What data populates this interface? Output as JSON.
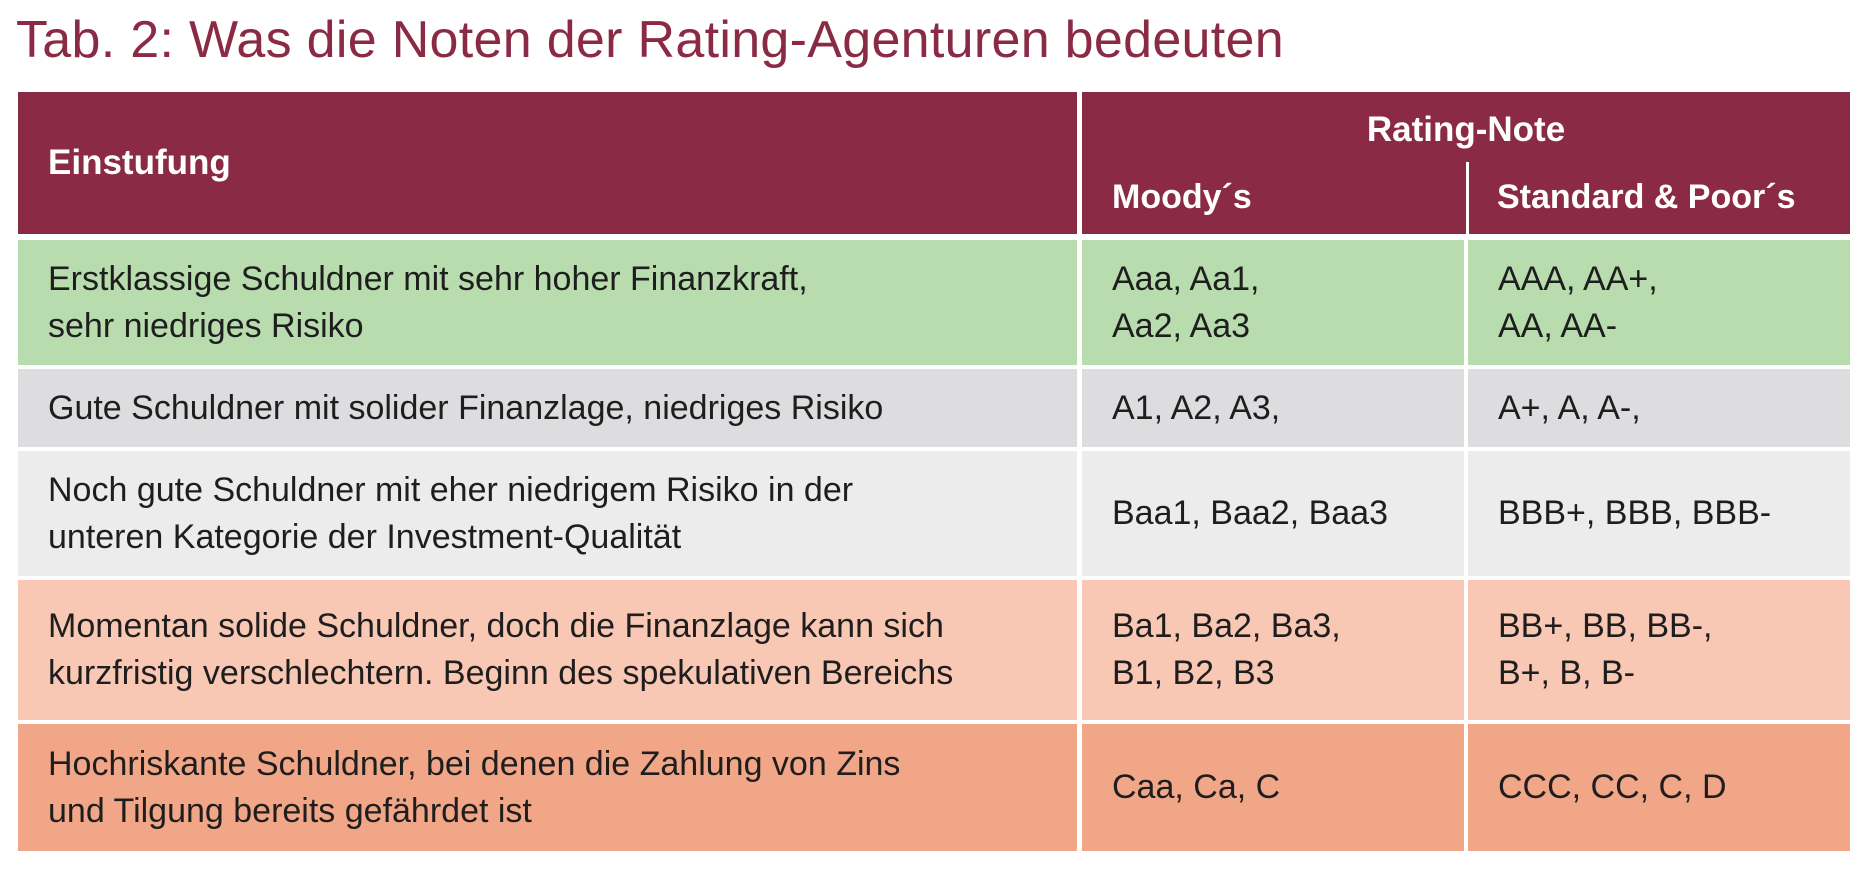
{
  "title": "Tab. 2: Was die Noten der Rating-Agenturen bedeuten",
  "header": {
    "einstufung": "Einstufung",
    "rating_note": "Rating-Note",
    "moodys": "Moody´s",
    "sp": "Standard & Poor´s"
  },
  "rows": [
    {
      "einstufung": "Erstklassige Schuldner mit sehr hoher Finanzkraft,\nsehr niedriges Risiko",
      "moodys": "Aaa, Aa1,\nAa2, Aa3",
      "sp": "AAA, AA+,\nAA, AA-"
    },
    {
      "einstufung": "Gute Schuldner mit solider Finanzlage, niedriges Risiko",
      "moodys": "A1, A2, A3,",
      "sp": "A+, A, A-,"
    },
    {
      "einstufung": "Noch gute Schuldner mit eher niedrigem Risiko in der\nunteren Kategorie der Investment-Qualität",
      "moodys": "Baa1, Baa2, Baa3",
      "sp": "BBB+, BBB, BBB-"
    },
    {
      "einstufung": "Momentan solide Schuldner, doch die Finanzlage kann sich\nkurzfristig verschlechtern. Beginn des spekulativen Bereichs",
      "moodys": "Ba1, Ba2, Ba3,\nB1, B2, B3",
      "sp": "BB+, BB, BB-,\nB+, B, B-"
    },
    {
      "einstufung": "Hochriskante Schuldner, bei denen die Zahlung von Zins\nund Tilgung bereits gefährdet ist",
      "moodys": "Caa, Ca, C",
      "sp": "CCC, CC, C, D"
    }
  ],
  "colors": {
    "header": "#8a2a45",
    "row1": "#b8dcad",
    "row2": "#dddddf",
    "row3": "#ececed",
    "row4": "#f9c8b4",
    "row5": "#f2a688"
  }
}
